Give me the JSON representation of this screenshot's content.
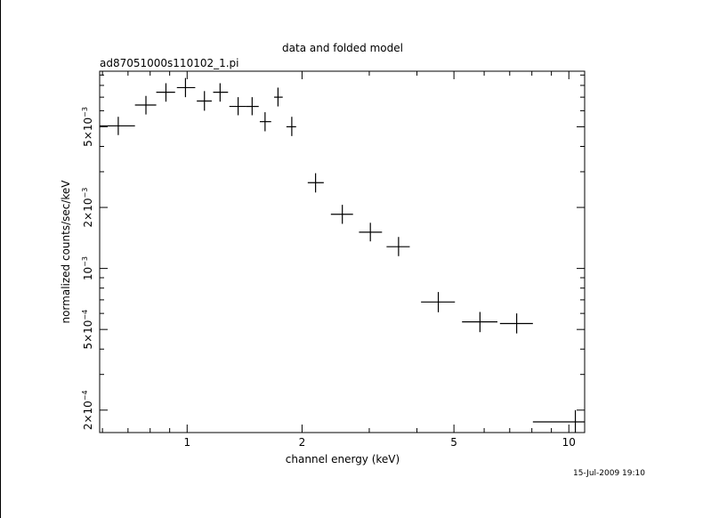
{
  "plot": {
    "title": "data and folded model",
    "file_label": "ad87051000s110102_1.pi",
    "xlabel": "channel energy (keV)",
    "ylabel": "normalized counts/sec/keV",
    "timestamp": "15-Jul-2009 19:10"
  },
  "chart_data": {
    "type": "scatter",
    "title": "data and folded model",
    "xlabel": "channel energy (keV)",
    "ylabel": "normalized counts/sec/keV",
    "x_scale": "log",
    "y_scale": "log",
    "xlim": [
      0.59,
      11.0
    ],
    "ylim": [
      0.000155,
      0.0094
    ],
    "x_tick_labels": [
      {
        "value": 1,
        "label": "1"
      },
      {
        "value": 2,
        "label": "2"
      },
      {
        "value": 5,
        "label": "5"
      },
      {
        "value": 10,
        "label": "10"
      }
    ],
    "y_tick_labels": [
      {
        "value": 0.0002,
        "mant": "2",
        "exp": "−4"
      },
      {
        "value": 0.0005,
        "mant": "5",
        "exp": "−4"
      },
      {
        "value": 0.001,
        "mant": "",
        "exp": "−3"
      },
      {
        "value": 0.002,
        "mant": "2",
        "exp": "−3"
      },
      {
        "value": 0.005,
        "mant": "5",
        "exp": "−3"
      }
    ],
    "points": [
      {
        "x": 0.66,
        "xlo": 0.59,
        "xhi": 0.73,
        "y": 0.00505,
        "ylo": 0.00455,
        "yhi": 0.0056
      },
      {
        "x": 0.78,
        "xlo": 0.73,
        "xhi": 0.83,
        "y": 0.0064,
        "ylo": 0.00575,
        "yhi": 0.0071
      },
      {
        "x": 0.88,
        "xlo": 0.83,
        "xhi": 0.93,
        "y": 0.0074,
        "ylo": 0.00665,
        "yhi": 0.0082
      },
      {
        "x": 0.99,
        "xlo": 0.94,
        "xhi": 1.05,
        "y": 0.0078,
        "ylo": 0.007,
        "yhi": 0.0087
      },
      {
        "x": 1.11,
        "xlo": 1.06,
        "xhi": 1.16,
        "y": 0.0067,
        "ylo": 0.006,
        "yhi": 0.0075
      },
      {
        "x": 1.22,
        "xlo": 1.17,
        "xhi": 1.28,
        "y": 0.0074,
        "ylo": 0.00665,
        "yhi": 0.0082
      },
      {
        "x": 1.36,
        "xlo": 1.29,
        "xhi": 1.43,
        "y": 0.0063,
        "ylo": 0.0057,
        "yhi": 0.007
      },
      {
        "x": 1.48,
        "xlo": 1.43,
        "xhi": 1.54,
        "y": 0.0063,
        "ylo": 0.0057,
        "yhi": 0.007
      },
      {
        "x": 1.6,
        "xlo": 1.55,
        "xhi": 1.66,
        "y": 0.0053,
        "ylo": 0.00475,
        "yhi": 0.0059
      },
      {
        "x": 1.73,
        "xlo": 1.69,
        "xhi": 1.78,
        "y": 0.007,
        "ylo": 0.0063,
        "yhi": 0.0078
      },
      {
        "x": 1.88,
        "xlo": 1.82,
        "xhi": 1.93,
        "y": 0.005,
        "ylo": 0.0045,
        "yhi": 0.0056
      },
      {
        "x": 2.17,
        "xlo": 2.07,
        "xhi": 2.28,
        "y": 0.00265,
        "ylo": 0.00237,
        "yhi": 0.00295
      },
      {
        "x": 2.55,
        "xlo": 2.38,
        "xhi": 2.72,
        "y": 0.00185,
        "ylo": 0.00166,
        "yhi": 0.00206
      },
      {
        "x": 3.02,
        "xlo": 2.82,
        "xhi": 3.24,
        "y": 0.00151,
        "ylo": 0.00136,
        "yhi": 0.00168
      },
      {
        "x": 3.58,
        "xlo": 3.33,
        "xhi": 3.83,
        "y": 0.00128,
        "ylo": 0.00115,
        "yhi": 0.00143
      },
      {
        "x": 4.55,
        "xlo": 4.1,
        "xhi": 5.03,
        "y": 0.000683,
        "ylo": 0.000608,
        "yhi": 0.000765
      },
      {
        "x": 5.85,
        "xlo": 5.25,
        "xhi": 6.5,
        "y": 0.000545,
        "ylo": 0.000485,
        "yhi": 0.00061
      },
      {
        "x": 7.3,
        "xlo": 6.6,
        "xhi": 8.05,
        "y": 0.000535,
        "ylo": 0.000478,
        "yhi": 0.0006
      },
      {
        "x": 10.4,
        "xlo": 8.05,
        "xhi": 11.0,
        "y": 0.000175,
        "ylo": 0.000155,
        "yhi": 0.0002
      }
    ]
  }
}
